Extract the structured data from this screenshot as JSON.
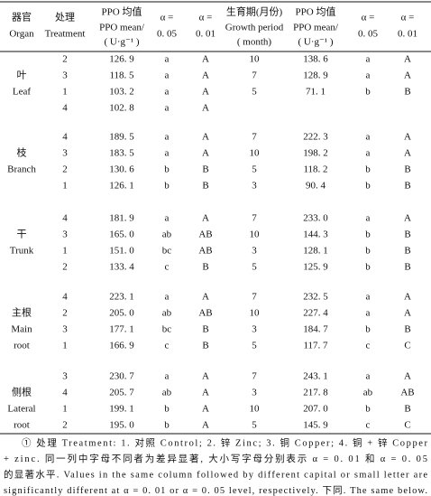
{
  "header": {
    "columns": [
      {
        "lines": [
          "器官",
          "Organ"
        ]
      },
      {
        "lines": [
          "处理",
          "Treatment"
        ]
      },
      {
        "lines": [
          "PPO 均值",
          "PPO mean/",
          "( U·g⁻¹ )"
        ]
      },
      {
        "lines": [
          "α =",
          "0. 05"
        ]
      },
      {
        "lines": [
          "α =",
          "0. 01"
        ]
      },
      {
        "lines": [
          "生育期(月份)",
          "Growth period",
          "( month)"
        ]
      },
      {
        "lines": [
          "PPO 均值",
          "PPO mean/",
          "( U·g⁻¹ )"
        ]
      },
      {
        "lines": [
          "α =",
          "0. 05"
        ]
      },
      {
        "lines": [
          "α =",
          "0. 01"
        ]
      }
    ]
  },
  "groups": [
    {
      "organ": [
        "叶",
        "Leaf"
      ],
      "rows": [
        [
          "2",
          "126. 9",
          "a",
          "A",
          "10",
          "138. 6",
          "a",
          "A"
        ],
        [
          "3",
          "118. 5",
          "a",
          "A",
          "7",
          "128. 9",
          "a",
          "A"
        ],
        [
          "1",
          "103. 2",
          "a",
          "A",
          "5",
          "71. 1",
          "b",
          "B"
        ],
        [
          "4",
          "102. 8",
          "a",
          "A"
        ]
      ]
    },
    {
      "organ": [
        "枝",
        "Branch"
      ],
      "rows": [
        [
          "4",
          "189. 5",
          "a",
          "A",
          "7",
          "222. 3",
          "a",
          "A"
        ],
        [
          "3",
          "183. 5",
          "a",
          "A",
          "10",
          "198. 2",
          "a",
          "A"
        ],
        [
          "2",
          "130. 6",
          "b",
          "B",
          "5",
          "118. 2",
          "b",
          "B"
        ],
        [
          "1",
          "126. 1",
          "b",
          "B",
          "3",
          "90. 4",
          "b",
          "B"
        ]
      ]
    },
    {
      "organ": [
        "干",
        "Trunk"
      ],
      "rows": [
        [
          "4",
          "181. 9",
          "a",
          "A",
          "7",
          "233. 0",
          "a",
          "A"
        ],
        [
          "3",
          "165. 0",
          "ab",
          "AB",
          "10",
          "144. 3",
          "b",
          "B"
        ],
        [
          "1",
          "151. 0",
          "bc",
          "AB",
          "3",
          "128. 1",
          "b",
          "B"
        ],
        [
          "2",
          "133. 4",
          "c",
          "B",
          "5",
          "125. 9",
          "b",
          "B"
        ]
      ]
    },
    {
      "organ": [
        "主根",
        "Main",
        "root"
      ],
      "rows": [
        [
          "4",
          "223. 1",
          "a",
          "A",
          "7",
          "232. 5",
          "a",
          "A"
        ],
        [
          "2",
          "205. 0",
          "ab",
          "AB",
          "10",
          "227. 4",
          "a",
          "A"
        ],
        [
          "3",
          "177. 1",
          "bc",
          "B",
          "3",
          "184. 7",
          "b",
          "B"
        ],
        [
          "1",
          "166. 9",
          "c",
          "B",
          "5",
          "117. 7",
          "c",
          "C"
        ]
      ]
    },
    {
      "organ": [
        "侧根",
        "Lateral",
        "root"
      ],
      "rows": [
        [
          "3",
          "230. 7",
          "a",
          "A",
          "7",
          "243. 1",
          "a",
          "A"
        ],
        [
          "4",
          "205. 7",
          "ab",
          "A",
          "3",
          "217. 8",
          "ab",
          "AB"
        ],
        [
          "1",
          "199. 1",
          "b",
          "A",
          "10",
          "207. 0",
          "b",
          "B"
        ],
        [
          "2",
          "195. 0",
          "b",
          "A",
          "5",
          "145. 9",
          "c",
          "C"
        ]
      ]
    }
  ],
  "footnote": [
    "① 处理 Treatment: 1. 对照 Control; 2. 锌 Zinc; 3. 铜 Copper; 4. 铜 + 锌 Copper",
    "+ zinc. 同一列中字母不同者为差异显著, 大小写字母分别表示 α = 0. 01 和 α = 0. 05",
    "的显著水平. Values in the same column followed by different capital or small letter are",
    "significantly different at α = 0. 01 or α = 0. 05 level, respectively. 下同. The same below."
  ]
}
